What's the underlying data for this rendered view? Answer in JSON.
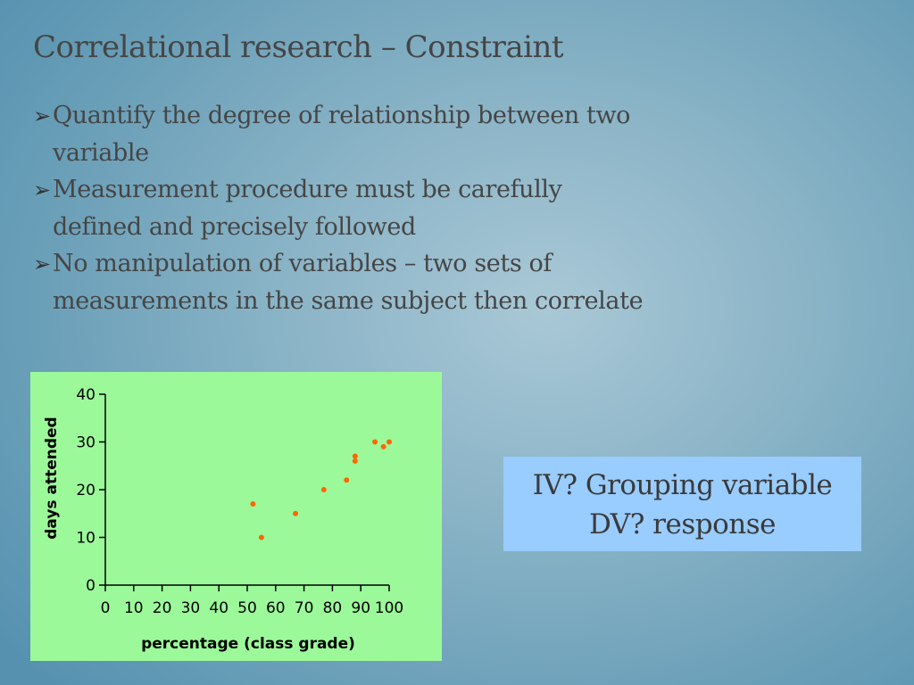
{
  "slide": {
    "title": "Correlational research – Constraint",
    "bullets": [
      "Quantify the degree of relationship between two variable",
      "Measurement procedure must be carefully defined and precisely followed",
      "No manipulation of variables – two sets of measurements in the same subject then correlate"
    ],
    "bullet_icon": "arrow-bullet-icon",
    "note_lines": [
      "IV? Grouping variable",
      "DV? response"
    ]
  },
  "colors": {
    "chart_background": "#9cf99a",
    "point_color": "#ff6600",
    "note_background": "#99ccff"
  },
  "chart_data": {
    "type": "scatter",
    "xlabel": "percentage (class grade)",
    "ylabel": "days attended",
    "xlim": [
      0,
      100
    ],
    "ylim": [
      0,
      40
    ],
    "x_ticks": [
      0,
      10,
      20,
      30,
      40,
      50,
      60,
      70,
      80,
      90,
      100
    ],
    "y_ticks": [
      0,
      10,
      20,
      30,
      40
    ],
    "points": [
      {
        "x": 52,
        "y": 17
      },
      {
        "x": 55,
        "y": 10
      },
      {
        "x": 67,
        "y": 15
      },
      {
        "x": 77,
        "y": 20
      },
      {
        "x": 85,
        "y": 22
      },
      {
        "x": 88,
        "y": 26
      },
      {
        "x": 88,
        "y": 27
      },
      {
        "x": 95,
        "y": 30
      },
      {
        "x": 98,
        "y": 29
      },
      {
        "x": 100,
        "y": 30
      }
    ],
    "grid": false
  }
}
